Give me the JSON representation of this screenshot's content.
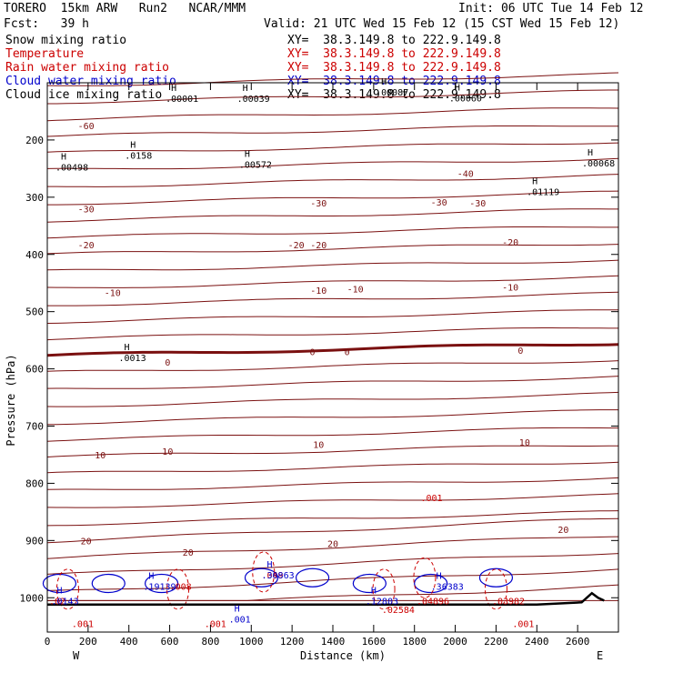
{
  "header": {
    "model": "TORERO  15km ARW   Run2   NCAR/MMM",
    "init": "Init: 06 UTC Tue 14 Feb 12",
    "fcst": "Fcst:   39 h",
    "valid": "Valid: 21 UTC Wed 15 Feb 12 (15 CST Wed 15 Feb 12)"
  },
  "legend": [
    {
      "name": "Snow mixing ratio",
      "xy": "",
      "color": "#000000"
    },
    {
      "name": "Temperature",
      "xy": "XY=  38.3.149.8 to 222.9.149.8",
      "color": "#cc0000"
    },
    {
      "name": "Rain water mixing ratio",
      "xy": "XY=  38.3.149.8 to 222.9.149.8",
      "color": "#cc0000"
    },
    {
      "name": "Cloud water mixing ratio",
      "xy": "XY=  38.3.149.8 to 222.9.149.8",
      "color": "#0000cc"
    },
    {
      "name": "Cloud ice mixing ratio",
      "xy": "XY=  38.3.149.8 to 222.9.149.8",
      "color": "#000000"
    }
  ],
  "first_xy": "XY=  38.3.149.8 to 222.9.149.8",
  "chart_data": {
    "type": "cross-section contour",
    "xlabel": "Distance (km)",
    "ylabel": "Pressure (hPa)",
    "xlim": [
      0,
      2800
    ],
    "ylim": [
      1060,
      100
    ],
    "x_ticks": [
      0,
      200,
      400,
      600,
      800,
      1000,
      1200,
      1400,
      1600,
      1800,
      2000,
      2200,
      2400,
      2600
    ],
    "y_ticks": [
      200,
      300,
      400,
      500,
      600,
      700,
      800,
      900,
      1000
    ],
    "endpoints": {
      "left": "W",
      "right": "E"
    },
    "temperature_labels": [
      {
        "x": 190,
        "p": 175,
        "text": "-60"
      },
      {
        "x": 2050,
        "p": 258,
        "text": "-40"
      },
      {
        "x": 190,
        "p": 320,
        "text": "-30"
      },
      {
        "x": 1330,
        "p": 310,
        "text": "-30"
      },
      {
        "x": 1920,
        "p": 308,
        "text": "-30"
      },
      {
        "x": 2110,
        "p": 310,
        "text": "-30"
      },
      {
        "x": 190,
        "p": 383,
        "text": "-20"
      },
      {
        "x": 1220,
        "p": 383,
        "text": "-20"
      },
      {
        "x": 1330,
        "p": 383,
        "text": "-20"
      },
      {
        "x": 2270,
        "p": 378,
        "text": "-20"
      },
      {
        "x": 320,
        "p": 466,
        "text": "-10"
      },
      {
        "x": 1330,
        "p": 462,
        "text": "-10"
      },
      {
        "x": 1510,
        "p": 460,
        "text": "-10"
      },
      {
        "x": 2270,
        "p": 457,
        "text": "-10"
      },
      {
        "x": 590,
        "p": 588,
        "text": "0"
      },
      {
        "x": 1300,
        "p": 570,
        "text": "0"
      },
      {
        "x": 1470,
        "p": 570,
        "text": "0"
      },
      {
        "x": 2320,
        "p": 567,
        "text": "0"
      },
      {
        "x": 260,
        "p": 750,
        "text": "10"
      },
      {
        "x": 590,
        "p": 744,
        "text": "10"
      },
      {
        "x": 1330,
        "p": 732,
        "text": "10"
      },
      {
        "x": 2340,
        "p": 728,
        "text": "10"
      },
      {
        "x": 190,
        "p": 900,
        "text": "20"
      },
      {
        "x": 690,
        "p": 920,
        "text": "20"
      },
      {
        "x": 1400,
        "p": 905,
        "text": "20"
      },
      {
        "x": 2530,
        "p": 880,
        "text": "20"
      }
    ],
    "snow_maxima": [
      {
        "x": 40,
        "p": 247,
        "text": ".00498"
      },
      {
        "x": 380,
        "p": 226,
        "text": ".0158"
      },
      {
        "x": 940,
        "p": 242,
        "text": ".00572"
      },
      {
        "x": 2350,
        "p": 290,
        "text": ".01119"
      },
      {
        "x": 2640,
        "p": 240,
        "text": ".00068"
      },
      {
        "x": 350,
        "p": 580,
        "text": ".0013"
      }
    ],
    "ice_maxima": [
      {
        "x": 580,
        "p": 127,
        "text": ".00001"
      },
      {
        "x": 930,
        "p": 127,
        "text": ".00039"
      },
      {
        "x": 1610,
        "p": 116,
        "text": ".00087"
      },
      {
        "x": 1970,
        "p": 126,
        "text": ".00060"
      }
    ],
    "rain_maxima": [
      {
        "x": 1830,
        "p": 825,
        "text": ".001"
      },
      {
        "x": 0,
        "p": 1005,
        "text": ".02"
      },
      {
        "x": 600,
        "p": 980,
        "text": ".008"
      },
      {
        "x": 1050,
        "p": 960,
        "text": ".049"
      },
      {
        "x": 770,
        "p": 1045,
        "text": ".001"
      },
      {
        "x": 1640,
        "p": 1020,
        "text": ".02584"
      },
      {
        "x": 1810,
        "p": 1005,
        "text": ".04896"
      },
      {
        "x": 2180,
        "p": 1005,
        "text": ".03982"
      },
      {
        "x": 2280,
        "p": 1045,
        "text": ".001"
      },
      {
        "x": 120,
        "p": 1045,
        "text": ".001"
      }
    ],
    "cloud_water_maxima": [
      {
        "x": 20,
        "p": 1005,
        "text": ".0143"
      },
      {
        "x": 470,
        "p": 980,
        "text": ".19139"
      },
      {
        "x": 1050,
        "p": 960,
        "text": ".30863"
      },
      {
        "x": 1560,
        "p": 1005,
        "text": ".12803"
      },
      {
        "x": 1880,
        "p": 980,
        "text": ".36383"
      },
      {
        "x": 890,
        "p": 1037,
        "text": ".001"
      }
    ],
    "ground_level": [
      [
        0,
        1012
      ],
      [
        400,
        1012
      ],
      [
        800,
        1012
      ],
      [
        1200,
        1012
      ],
      [
        1600,
        1012
      ],
      [
        2000,
        1012
      ],
      [
        2400,
        1012
      ],
      [
        2620,
        1008
      ],
      [
        2670,
        992
      ],
      [
        2700,
        1000
      ],
      [
        2730,
        1005
      ]
    ]
  }
}
